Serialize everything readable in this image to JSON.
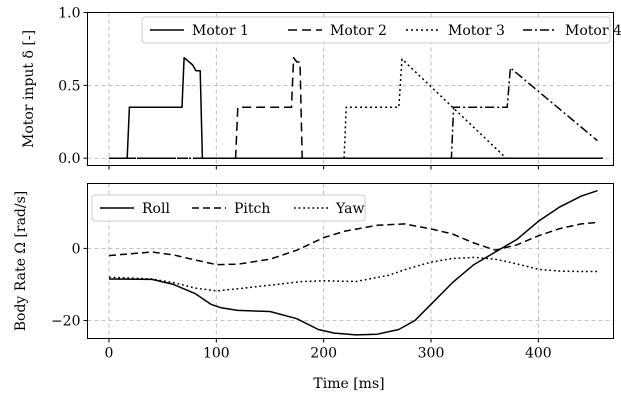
{
  "chart_data": [
    {
      "type": "line",
      "ylabel": "Motor input δ [-]",
      "xlim": [
        -20,
        470
      ],
      "ylim": [
        -0.05,
        1.0
      ],
      "yticks": [
        0.0,
        0.5,
        1.0
      ],
      "ytick_labels": [
        "0.0",
        "0.5",
        "1.0"
      ],
      "xticks": [
        0,
        100,
        200,
        300,
        400
      ],
      "grid": true,
      "legend": {
        "placement": "top-right",
        "columns": 4
      },
      "series": [
        {
          "name": "Motor 1",
          "dash": "",
          "x": [
            0,
            17,
            19,
            68,
            70,
            78,
            81,
            85,
            87,
            460
          ],
          "y": [
            0,
            0,
            0.35,
            0.35,
            0.69,
            0.64,
            0.6,
            0.6,
            0,
            0
          ]
        },
        {
          "name": "Motor 2",
          "dash": "9 5",
          "x": [
            0,
            118,
            120,
            170,
            172,
            175,
            178,
            180,
            460
          ],
          "y": [
            0,
            0,
            0.35,
            0.35,
            0.69,
            0.66,
            0.66,
            0,
            0
          ]
        },
        {
          "name": "Motor 3",
          "dash": "2 3",
          "x": [
            0,
            219,
            221,
            270,
            273,
            370,
            460
          ],
          "y": [
            0,
            0,
            0.35,
            0.35,
            0.68,
            0,
            0
          ]
        },
        {
          "name": "Motor 4",
          "dash": "9 3 2 3",
          "x": [
            0,
            319,
            321,
            371,
            374,
            455
          ],
          "y": [
            0,
            0,
            0.35,
            0.35,
            0.62,
            0.12
          ]
        }
      ]
    },
    {
      "type": "line",
      "ylabel": "Body Rate Ω [rad/s]",
      "xlabel": "Time [ms]",
      "xlim": [
        -20,
        470
      ],
      "ylim": [
        -25,
        18
      ],
      "yticks": [
        -20,
        0
      ],
      "ytick_labels": [
        "−20",
        "0"
      ],
      "xticks": [
        0,
        100,
        200,
        300,
        400
      ],
      "xtick_labels": [
        "0",
        "100",
        "200",
        "300",
        "400"
      ],
      "grid": true,
      "legend": {
        "placement": "top-left",
        "columns": 3
      },
      "series": [
        {
          "name": "Roll",
          "dash": "",
          "x": [
            0,
            40,
            60,
            80,
            95,
            105,
            120,
            150,
            175,
            195,
            210,
            230,
            250,
            270,
            285,
            300,
            320,
            340,
            360,
            380,
            400,
            420,
            440,
            455
          ],
          "y": [
            -8.5,
            -8.6,
            -10,
            -12.5,
            -15.5,
            -16.5,
            -17.2,
            -17.5,
            -19.5,
            -22.5,
            -23.5,
            -24,
            -23.8,
            -22.5,
            -20,
            -15.5,
            -9.5,
            -4.5,
            -1,
            2.5,
            7.5,
            11.5,
            14.5,
            16
          ]
        },
        {
          "name": "Pitch",
          "dash": "7 4",
          "x": [
            0,
            20,
            40,
            60,
            80,
            100,
            120,
            150,
            175,
            200,
            220,
            250,
            275,
            300,
            320,
            340,
            360,
            380,
            400,
            420,
            440,
            455
          ],
          "y": [
            -2,
            -1.5,
            -1,
            -1.8,
            -3.2,
            -4.5,
            -4.4,
            -3,
            -0.5,
            3,
            4.8,
            6.4,
            6.8,
            5.4,
            4,
            1.5,
            -0.5,
            1,
            3.5,
            5.5,
            6.8,
            7.2
          ]
        },
        {
          "name": "Yaw",
          "dash": "1.8 2.8",
          "x": [
            0,
            40,
            60,
            80,
            100,
            120,
            150,
            180,
            200,
            230,
            260,
            280,
            300,
            320,
            340,
            360,
            380,
            400,
            420,
            440,
            455
          ],
          "y": [
            -8,
            -8.5,
            -9.5,
            -11,
            -11.8,
            -11.2,
            -10.2,
            -9.2,
            -9,
            -9.2,
            -7.5,
            -5.5,
            -3.8,
            -2.8,
            -2.5,
            -3,
            -4.3,
            -5.8,
            -6.3,
            -6.4,
            -6.4
          ]
        }
      ]
    }
  ]
}
